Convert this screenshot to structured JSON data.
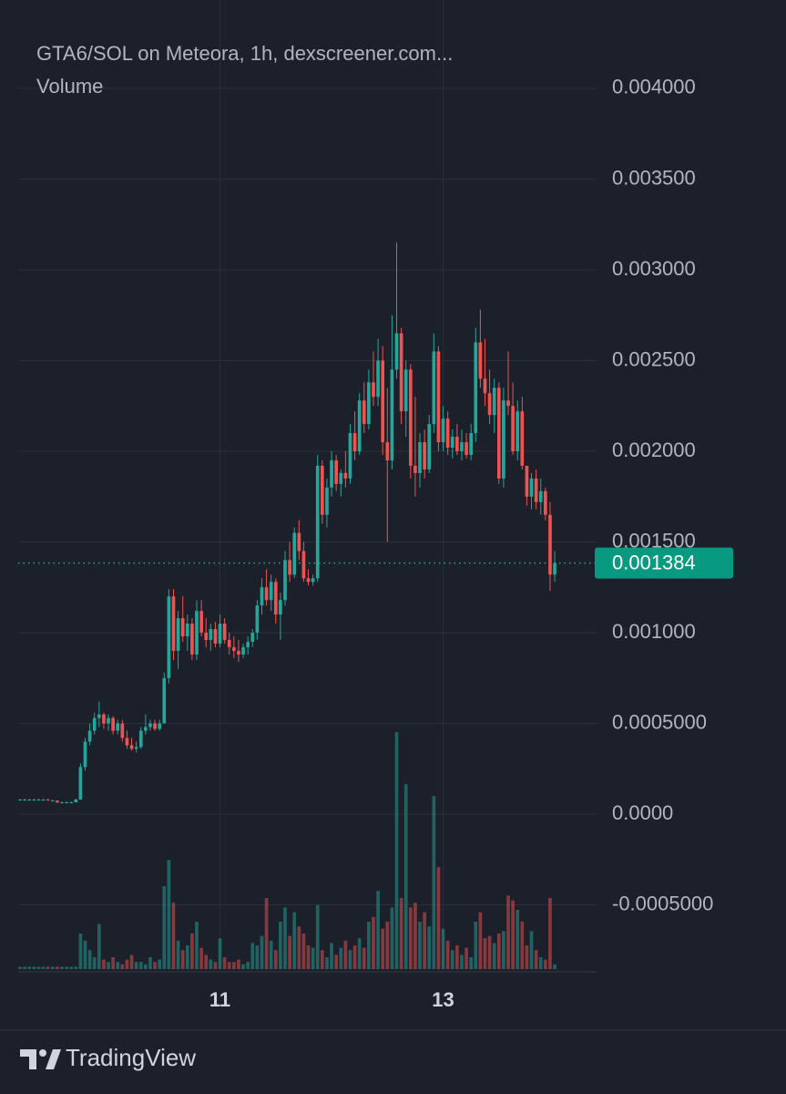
{
  "chart_data": {
    "type": "candlestick",
    "title": "GTA6/SOL on Meteora, 1h, dexscreener.com...",
    "subtitle": "Volume",
    "up_color": "#26a69a",
    "down_color": "#ef5350",
    "grid": true,
    "open": [
      8e-05,
      8e-05,
      8e-05,
      8e-05,
      8e-05,
      8e-05,
      8e-05,
      7.5e-05,
      7.5e-05,
      6.5e-05,
      6.5e-05,
      6.5e-05,
      6.5e-05,
      8e-05,
      0.00026,
      0.0004,
      0.00046,
      0.00053,
      0.00055,
      0.0005,
      0.00053,
      0.00046,
      0.0005,
      0.00042,
      0.00038,
      0.00036,
      0.00037,
      0.00046,
      0.00048,
      0.0005,
      0.00047,
      0.0005,
      0.00075,
      0.0012,
      0.0009,
      0.00108,
      0.00098,
      0.00105,
      0.00088,
      0.00112,
      0.001,
      0.00096,
      0.00102,
      0.00094,
      0.00105,
      0.00096,
      0.00092,
      0.0009,
      0.00088,
      0.00092,
      0.00095,
      0.001,
      0.00115,
      0.00125,
      0.00118,
      0.00128,
      0.0011,
      0.00118,
      0.0014,
      0.00132,
      0.00155,
      0.00145,
      0.0013,
      0.00128,
      0.0013,
      0.00192,
      0.00165,
      0.0018,
      0.00195,
      0.00182,
      0.00188,
      0.00185,
      0.0021,
      0.002,
      0.00228,
      0.00215,
      0.00238,
      0.0023,
      0.0025,
      0.00205,
      0.00195,
      0.00245,
      0.00265,
      0.00222,
      0.00245,
      0.00192,
      0.00188,
      0.00205,
      0.0019,
      0.00215,
      0.00255,
      0.00205,
      0.00218,
      0.00202,
      0.00208,
      0.002,
      0.00205,
      0.00198,
      0.0021,
      0.0026,
      0.0024,
      0.00232,
      0.0022,
      0.00235,
      0.00185,
      0.00228,
      0.00225,
      0.002,
      0.00222,
      0.00192,
      0.00175,
      0.00185,
      0.00172,
      0.00178,
      0.00165,
      0.00132
    ],
    "high": [
      8.5e-05,
      8.5e-05,
      8.5e-05,
      8.5e-05,
      8.5e-05,
      8.5e-05,
      8.5e-05,
      8e-05,
      7.5e-05,
      7e-05,
      7e-05,
      7e-05,
      8.5e-05,
      0.00028,
      0.00042,
      0.0005,
      0.00056,
      0.00062,
      0.00056,
      0.00055,
      0.00054,
      0.00052,
      0.00052,
      0.00046,
      0.00042,
      0.0004,
      0.00048,
      0.00055,
      0.00052,
      0.00052,
      0.00052,
      0.00078,
      0.00124,
      0.00124,
      0.00112,
      0.0012,
      0.0011,
      0.00108,
      0.00118,
      0.00118,
      0.00108,
      0.00105,
      0.00106,
      0.0011,
      0.00108,
      0.001,
      0.00098,
      0.00096,
      0.00094,
      0.00098,
      0.00102,
      0.00118,
      0.0013,
      0.00135,
      0.00132,
      0.0013,
      0.00122,
      0.00145,
      0.0015,
      0.00158,
      0.00162,
      0.0015,
      0.00135,
      0.00132,
      0.00198,
      0.00195,
      0.00185,
      0.002,
      0.00198,
      0.0019,
      0.002,
      0.00215,
      0.00222,
      0.00232,
      0.00238,
      0.00245,
      0.00255,
      0.00262,
      0.00258,
      0.00235,
      0.00275,
      0.00315,
      0.00268,
      0.0025,
      0.00248,
      0.0023,
      0.0021,
      0.00212,
      0.0022,
      0.00265,
      0.00258,
      0.00225,
      0.00222,
      0.00212,
      0.00215,
      0.00212,
      0.0021,
      0.00215,
      0.00268,
      0.00278,
      0.00262,
      0.00245,
      0.0024,
      0.00238,
      0.00235,
      0.00255,
      0.00238,
      0.00228,
      0.0023,
      0.00192,
      0.00188,
      0.0019,
      0.00185,
      0.0018,
      0.00172,
      0.00145
    ],
    "low": [
      7.5e-05,
      7.5e-05,
      7.5e-05,
      7.5e-05,
      7.5e-05,
      7.5e-05,
      7.5e-05,
      7e-05,
      6e-05,
      6e-05,
      6e-05,
      6e-05,
      6.5e-05,
      8e-05,
      0.00024,
      0.00038,
      0.00044,
      0.00048,
      0.00047,
      0.00046,
      0.00044,
      0.00044,
      0.0004,
      0.00036,
      0.00035,
      0.00034,
      0.00036,
      0.00044,
      0.00046,
      0.00046,
      0.00046,
      0.0005,
      0.00072,
      0.00085,
      0.0008,
      0.00095,
      0.0009,
      0.00085,
      0.00085,
      0.00098,
      0.00092,
      0.0009,
      0.00092,
      0.00092,
      0.00094,
      0.00088,
      0.00086,
      0.00084,
      0.00086,
      0.00088,
      0.00092,
      0.00096,
      0.0011,
      0.00115,
      0.00112,
      0.00105,
      0.00096,
      0.00115,
      0.00128,
      0.0013,
      0.0014,
      0.00128,
      0.00126,
      0.00126,
      0.00128,
      0.0016,
      0.00158,
      0.00175,
      0.00178,
      0.00175,
      0.0018,
      0.00182,
      0.00195,
      0.00198,
      0.0021,
      0.00212,
      0.00225,
      0.00225,
      0.00198,
      0.0015,
      0.0019,
      0.0024,
      0.00215,
      0.00208,
      0.00185,
      0.00175,
      0.0018,
      0.00185,
      0.00188,
      0.0021,
      0.002,
      0.002,
      0.00198,
      0.00196,
      0.00198,
      0.00195,
      0.00196,
      0.00195,
      0.00205,
      0.00235,
      0.00225,
      0.00215,
      0.0021,
      0.00182,
      0.0018,
      0.0022,
      0.00198,
      0.00195,
      0.0019,
      0.0017,
      0.00168,
      0.00168,
      0.00165,
      0.00162,
      0.00123,
      0.00128
    ],
    "close": [
      8e-05,
      8e-05,
      8e-05,
      8e-05,
      8e-05,
      8e-05,
      7.5e-05,
      7.5e-05,
      6.5e-05,
      6.5e-05,
      6.5e-05,
      6.5e-05,
      8e-05,
      0.00026,
      0.0004,
      0.00046,
      0.00053,
      0.00055,
      0.0005,
      0.00053,
      0.00046,
      0.0005,
      0.00042,
      0.00038,
      0.00036,
      0.00037,
      0.00046,
      0.00048,
      0.0005,
      0.00047,
      0.0005,
      0.00075,
      0.0012,
      0.0009,
      0.00108,
      0.00098,
      0.00105,
      0.00088,
      0.00112,
      0.001,
      0.00096,
      0.00102,
      0.00094,
      0.00105,
      0.00096,
      0.00092,
      0.0009,
      0.00088,
      0.00092,
      0.00095,
      0.001,
      0.00115,
      0.00125,
      0.00118,
      0.00128,
      0.0011,
      0.00118,
      0.0014,
      0.00132,
      0.00155,
      0.00145,
      0.0013,
      0.00128,
      0.0013,
      0.00192,
      0.00165,
      0.0018,
      0.00195,
      0.00182,
      0.00188,
      0.00185,
      0.0021,
      0.002,
      0.00228,
      0.00215,
      0.00238,
      0.0023,
      0.0025,
      0.00205,
      0.00195,
      0.00245,
      0.00265,
      0.00222,
      0.00245,
      0.00192,
      0.00188,
      0.00205,
      0.0019,
      0.00215,
      0.00255,
      0.00205,
      0.00218,
      0.00202,
      0.00208,
      0.002,
      0.00205,
      0.00198,
      0.0021,
      0.0026,
      0.0024,
      0.00232,
      0.0022,
      0.00235,
      0.00185,
      0.00228,
      0.00225,
      0.002,
      0.00222,
      0.00192,
      0.00175,
      0.00185,
      0.00172,
      0.00178,
      0.00165,
      0.00132,
      0.001384
    ],
    "volume": [
      1,
      1,
      1,
      1,
      1,
      1,
      1,
      1,
      1,
      1,
      1,
      1,
      1,
      15,
      12,
      8,
      5,
      19,
      4,
      3,
      5,
      3,
      2,
      4,
      6,
      3,
      3,
      2,
      5,
      3,
      4,
      35,
      46,
      28,
      12,
      8,
      10,
      15,
      20,
      9,
      6,
      4,
      3,
      13,
      5,
      3,
      3,
      4,
      2,
      3,
      11,
      10,
      14,
      30,
      12,
      8,
      20,
      26,
      14,
      24,
      18,
      15,
      10,
      9,
      27,
      8,
      5,
      11,
      6,
      9,
      12,
      8,
      10,
      13,
      9,
      20,
      22,
      33,
      17,
      20,
      26,
      100,
      30,
      78,
      26,
      28,
      20,
      24,
      18,
      73,
      43,
      17,
      12,
      8,
      10,
      6,
      9,
      5,
      20,
      24,
      13,
      14,
      11,
      15,
      16,
      31,
      29,
      25,
      20,
      10,
      16,
      8,
      5,
      4,
      30,
      2
    ],
    "ylim": [
      -0.000864,
      0.004487
    ],
    "yticks": [
      {
        "value": 0.004,
        "label": "0.004000"
      },
      {
        "value": 0.0035,
        "label": "0.003500"
      },
      {
        "value": 0.003,
        "label": "0.003000"
      },
      {
        "value": 0.0025,
        "label": "0.002500"
      },
      {
        "value": 0.002,
        "label": "0.002000"
      },
      {
        "value": 0.0015,
        "label": "0.001500"
      },
      {
        "value": 0.001,
        "label": "0.001000"
      },
      {
        "value": 0.0005,
        "label": "0.0005000"
      },
      {
        "value": 0,
        "label": "0.0000"
      },
      {
        "value": -0.0005,
        "label": "-0.0005000"
      }
    ],
    "xlim": [
      -0.4,
      124
    ],
    "xticks": [
      {
        "value": 43,
        "label": "11"
      },
      {
        "value": 91,
        "label": "13"
      }
    ]
  },
  "footer": {
    "brand": "TradingView"
  }
}
